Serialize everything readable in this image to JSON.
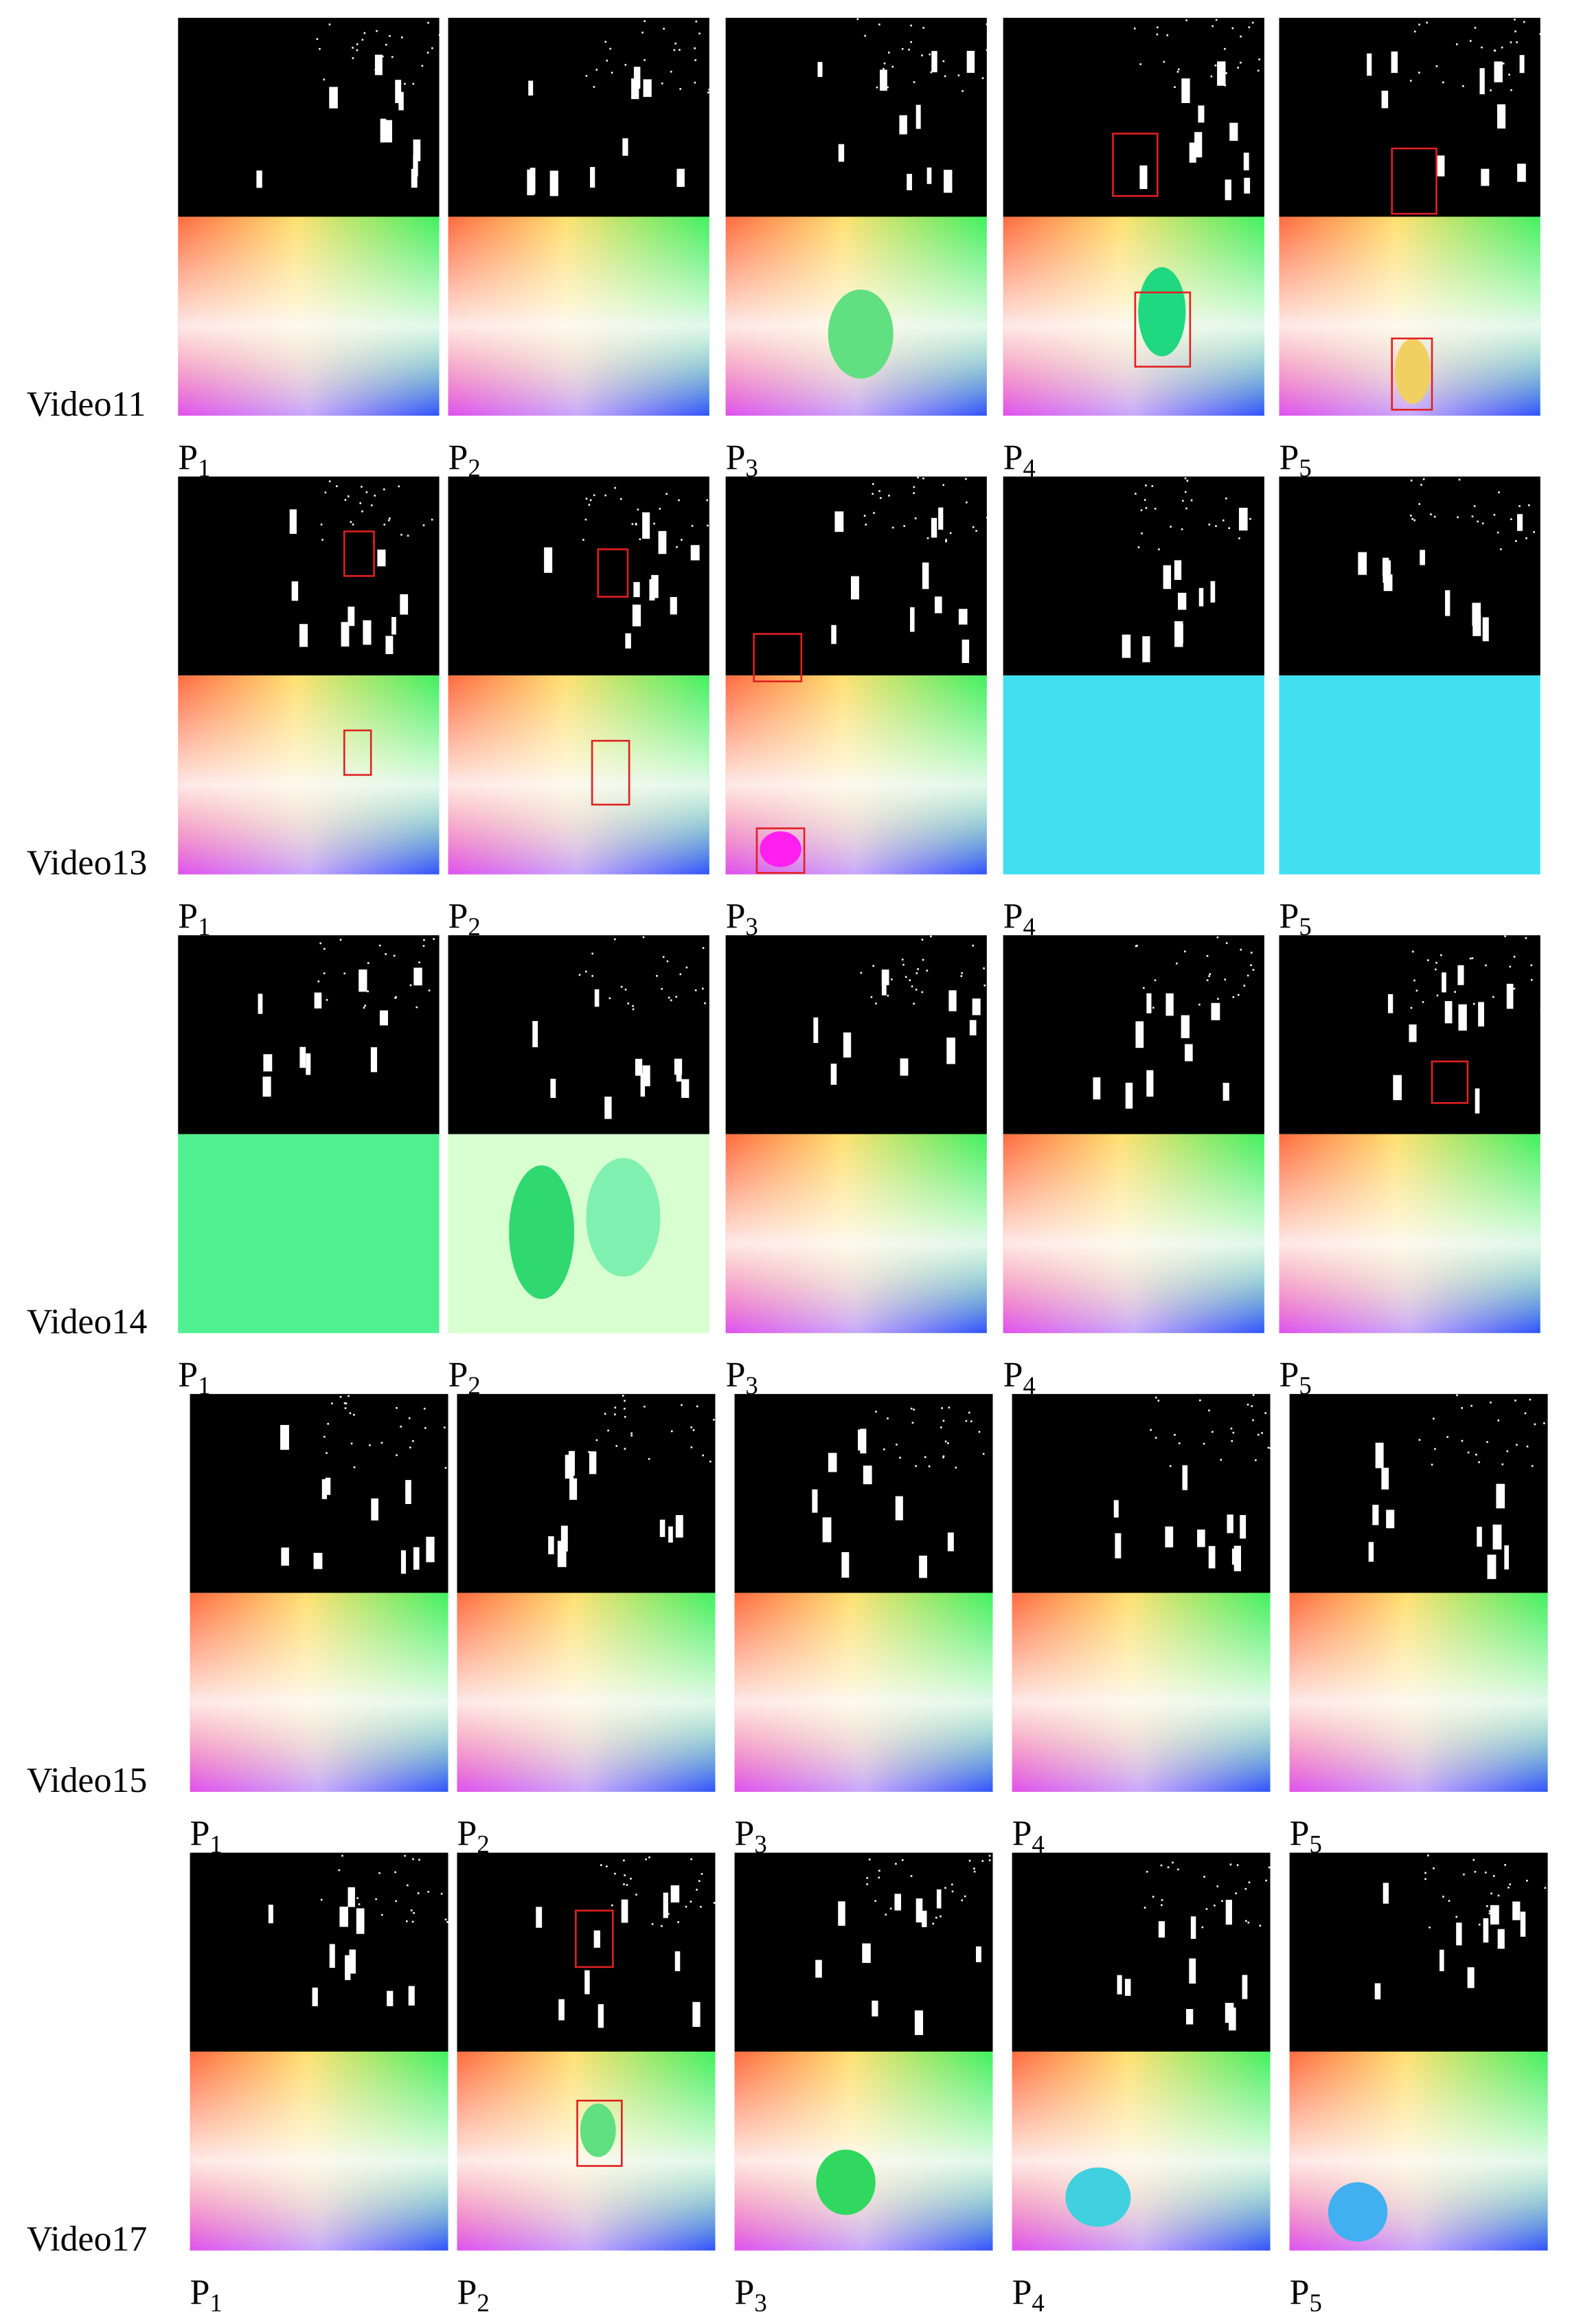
{
  "rows": [
    {
      "label": "Video11",
      "panels": [
        {
          "letter": "P",
          "index": "1"
        },
        {
          "letter": "P",
          "index": "2"
        },
        {
          "letter": "P",
          "index": "3"
        },
        {
          "letter": "P",
          "index": "4"
        },
        {
          "letter": "P",
          "index": "5"
        }
      ]
    },
    {
      "label": "Video13",
      "panels": [
        {
          "letter": "P",
          "index": "1"
        },
        {
          "letter": "P",
          "index": "2"
        },
        {
          "letter": "P",
          "index": "3"
        },
        {
          "letter": "P",
          "index": "4"
        },
        {
          "letter": "P",
          "index": "5"
        }
      ]
    },
    {
      "label": "Video14",
      "panels": [
        {
          "letter": "P",
          "index": "1"
        },
        {
          "letter": "P",
          "index": "2"
        },
        {
          "letter": "P",
          "index": "3"
        },
        {
          "letter": "P",
          "index": "4"
        },
        {
          "letter": "P",
          "index": "5"
        }
      ]
    },
    {
      "label": "Video15",
      "panels": [
        {
          "letter": "P",
          "index": "1"
        },
        {
          "letter": "P",
          "index": "2"
        },
        {
          "letter": "P",
          "index": "3"
        },
        {
          "letter": "P",
          "index": "4"
        },
        {
          "letter": "P",
          "index": "5"
        }
      ]
    },
    {
      "label": "Video17",
      "panels": [
        {
          "letter": "P",
          "index": "1"
        },
        {
          "letter": "P",
          "index": "2"
        },
        {
          "letter": "P",
          "index": "3"
        },
        {
          "letter": "P",
          "index": "4"
        },
        {
          "letter": "P",
          "index": "5"
        }
      ]
    }
  ]
}
